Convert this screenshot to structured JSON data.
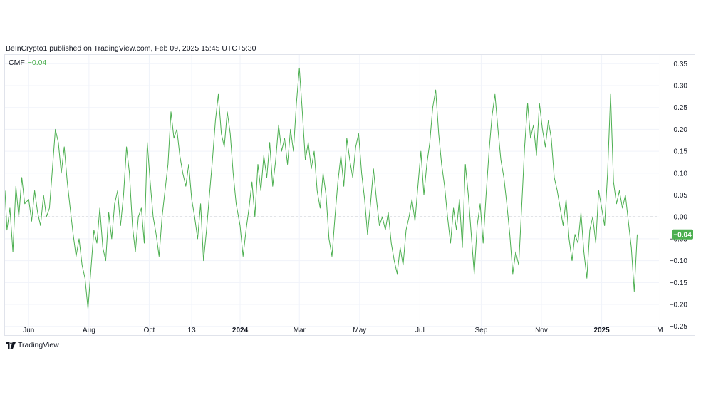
{
  "header": {
    "publish_text": "BeInCrypto1 published on TradingView.com, Feb 09, 2025 15:45 UTC+5:30"
  },
  "legend": {
    "name": "CMF",
    "value": "−0.04"
  },
  "footer": {
    "brand": "TradingView",
    "logo_icon": "tradingview-logo-icon"
  },
  "colors": {
    "series": "#4caf50",
    "badge": "#4caf50",
    "zero_line": "#9598a1",
    "grid": "#f0f3fa",
    "text": "#131722"
  },
  "chart_data": {
    "type": "line",
    "title": "",
    "xlabel": "",
    "ylabel": "",
    "grid": true,
    "legend_placement": "top-left",
    "ylim": [
      -0.27,
      0.37
    ],
    "xlim": [
      "2023-05-08",
      "2025-02-28"
    ],
    "yticks": [
      0.35,
      0.3,
      0.25,
      0.2,
      0.15,
      0.1,
      0.05,
      0.0,
      -0.05,
      -0.1,
      -0.15,
      -0.2,
      -0.25
    ],
    "ytick_labels": [
      "0.35",
      "0.30",
      "0.25",
      "0.20",
      "0.15",
      "0.10",
      "0.05",
      "0.00",
      "−0.05",
      "−0.10",
      "−0.15",
      "−0.20",
      "−0.25"
    ],
    "xticks": [
      {
        "date": "2023-06-01",
        "label": "Jun",
        "bold": false
      },
      {
        "date": "2023-08-01",
        "label": "Aug",
        "bold": false
      },
      {
        "date": "2023-10-01",
        "label": "Oct",
        "bold": false
      },
      {
        "date": "2023-11-13",
        "label": "13",
        "bold": false
      },
      {
        "date": "2024-01-01",
        "label": "2024",
        "bold": true
      },
      {
        "date": "2024-03-01",
        "label": "Mar",
        "bold": false
      },
      {
        "date": "2024-05-01",
        "label": "May",
        "bold": false
      },
      {
        "date": "2024-07-01",
        "label": "Jul",
        "bold": false
      },
      {
        "date": "2024-09-01",
        "label": "Sep",
        "bold": false
      },
      {
        "date": "2024-11-01",
        "label": "Nov",
        "bold": false
      },
      {
        "date": "2025-01-01",
        "label": "2025",
        "bold": true
      },
      {
        "date": "2025-03-01",
        "label": "M",
        "bold": false
      }
    ],
    "zero_line": 0.0,
    "last_value": -0.04,
    "last_value_label": "−0.04",
    "series": [
      {
        "points": [
          [
            "2023-05-08",
            0.06
          ],
          [
            "2023-05-10",
            -0.03
          ],
          [
            "2023-05-13",
            0.02
          ],
          [
            "2023-05-16",
            -0.08
          ],
          [
            "2023-05-19",
            0.07
          ],
          [
            "2023-05-22",
            0.0
          ],
          [
            "2023-05-25",
            0.09
          ],
          [
            "2023-05-28",
            0.03
          ],
          [
            "2023-06-01",
            0.04
          ],
          [
            "2023-06-04",
            -0.01
          ],
          [
            "2023-06-07",
            0.06
          ],
          [
            "2023-06-10",
            0.01
          ],
          [
            "2023-06-13",
            -0.02
          ],
          [
            "2023-06-16",
            0.05
          ],
          [
            "2023-06-19",
            0.0
          ],
          [
            "2023-06-22",
            0.02
          ],
          [
            "2023-06-25",
            0.11
          ],
          [
            "2023-06-28",
            0.2
          ],
          [
            "2023-07-01",
            0.17
          ],
          [
            "2023-07-04",
            0.1
          ],
          [
            "2023-07-07",
            0.16
          ],
          [
            "2023-07-10",
            0.08
          ],
          [
            "2023-07-13",
            0.02
          ],
          [
            "2023-07-16",
            -0.04
          ],
          [
            "2023-07-19",
            -0.09
          ],
          [
            "2023-07-22",
            -0.05
          ],
          [
            "2023-07-25",
            -0.11
          ],
          [
            "2023-07-28",
            -0.14
          ],
          [
            "2023-07-31",
            -0.21
          ],
          [
            "2023-08-03",
            -0.12
          ],
          [
            "2023-08-06",
            -0.03
          ],
          [
            "2023-08-09",
            -0.06
          ],
          [
            "2023-08-12",
            0.02
          ],
          [
            "2023-08-15",
            -0.07
          ],
          [
            "2023-08-18",
            -0.1
          ],
          [
            "2023-08-21",
            0.01
          ],
          [
            "2023-08-24",
            -0.05
          ],
          [
            "2023-08-27",
            0.03
          ],
          [
            "2023-08-30",
            0.06
          ],
          [
            "2023-09-02",
            -0.02
          ],
          [
            "2023-09-05",
            0.05
          ],
          [
            "2023-09-08",
            0.16
          ],
          [
            "2023-09-11",
            0.1
          ],
          [
            "2023-09-14",
            -0.02
          ],
          [
            "2023-09-17",
            -0.08
          ],
          [
            "2023-09-20",
            0.0
          ],
          [
            "2023-09-23",
            0.02
          ],
          [
            "2023-09-26",
            -0.06
          ],
          [
            "2023-09-29",
            0.17
          ],
          [
            "2023-10-02",
            0.08
          ],
          [
            "2023-10-05",
            0.0
          ],
          [
            "2023-10-08",
            -0.04
          ],
          [
            "2023-10-11",
            -0.09
          ],
          [
            "2023-10-14",
            0.0
          ],
          [
            "2023-10-17",
            0.06
          ],
          [
            "2023-10-20",
            0.12
          ],
          [
            "2023-10-23",
            0.24
          ],
          [
            "2023-10-26",
            0.18
          ],
          [
            "2023-10-29",
            0.2
          ],
          [
            "2023-11-01",
            0.14
          ],
          [
            "2023-11-04",
            0.1
          ],
          [
            "2023-11-07",
            0.07
          ],
          [
            "2023-11-10",
            0.12
          ],
          [
            "2023-11-13",
            0.04
          ],
          [
            "2023-11-16",
            0.0
          ],
          [
            "2023-11-19",
            -0.05
          ],
          [
            "2023-11-22",
            0.03
          ],
          [
            "2023-11-25",
            -0.1
          ],
          [
            "2023-11-28",
            -0.03
          ],
          [
            "2023-12-01",
            0.05
          ],
          [
            "2023-12-04",
            0.13
          ],
          [
            "2023-12-07",
            0.22
          ],
          [
            "2023-12-10",
            0.28
          ],
          [
            "2023-12-13",
            0.19
          ],
          [
            "2023-12-16",
            0.16
          ],
          [
            "2023-12-19",
            0.24
          ],
          [
            "2023-12-22",
            0.19
          ],
          [
            "2023-12-25",
            0.1
          ],
          [
            "2023-12-28",
            0.03
          ],
          [
            "2024-01-01",
            -0.02
          ],
          [
            "2024-01-04",
            -0.09
          ],
          [
            "2024-01-07",
            -0.03
          ],
          [
            "2024-01-10",
            0.02
          ],
          [
            "2024-01-13",
            0.08
          ],
          [
            "2024-01-16",
            0.0
          ],
          [
            "2024-01-19",
            0.12
          ],
          [
            "2024-01-22",
            0.06
          ],
          [
            "2024-01-25",
            0.14
          ],
          [
            "2024-01-28",
            0.09
          ],
          [
            "2024-01-31",
            0.17
          ],
          [
            "2024-02-03",
            0.07
          ],
          [
            "2024-02-06",
            0.13
          ],
          [
            "2024-02-09",
            0.21
          ],
          [
            "2024-02-12",
            0.15
          ],
          [
            "2024-02-15",
            0.18
          ],
          [
            "2024-02-18",
            0.12
          ],
          [
            "2024-02-21",
            0.2
          ],
          [
            "2024-02-24",
            0.15
          ],
          [
            "2024-02-27",
            0.26
          ],
          [
            "2024-03-01",
            0.34
          ],
          [
            "2024-03-04",
            0.24
          ],
          [
            "2024-03-07",
            0.13
          ],
          [
            "2024-03-10",
            0.17
          ],
          [
            "2024-03-13",
            0.11
          ],
          [
            "2024-03-16",
            0.15
          ],
          [
            "2024-03-19",
            0.06
          ],
          [
            "2024-03-22",
            0.02
          ],
          [
            "2024-03-25",
            0.1
          ],
          [
            "2024-03-28",
            0.05
          ],
          [
            "2024-03-31",
            -0.05
          ],
          [
            "2024-04-03",
            -0.09
          ],
          [
            "2024-04-06",
            0.0
          ],
          [
            "2024-04-09",
            0.08
          ],
          [
            "2024-04-12",
            0.14
          ],
          [
            "2024-04-15",
            0.07
          ],
          [
            "2024-04-18",
            0.18
          ],
          [
            "2024-04-21",
            0.13
          ],
          [
            "2024-04-24",
            0.09
          ],
          [
            "2024-04-27",
            0.16
          ],
          [
            "2024-04-30",
            0.19
          ],
          [
            "2024-05-03",
            0.1
          ],
          [
            "2024-05-06",
            0.04
          ],
          [
            "2024-05-09",
            -0.04
          ],
          [
            "2024-05-12",
            0.03
          ],
          [
            "2024-05-15",
            0.11
          ],
          [
            "2024-05-18",
            0.04
          ],
          [
            "2024-05-21",
            -0.02
          ],
          [
            "2024-05-24",
            0.0
          ],
          [
            "2024-05-27",
            -0.03
          ],
          [
            "2024-05-30",
            0.01
          ],
          [
            "2024-06-02",
            -0.06
          ],
          [
            "2024-06-05",
            -0.1
          ],
          [
            "2024-06-08",
            -0.13
          ],
          [
            "2024-06-11",
            -0.07
          ],
          [
            "2024-06-14",
            -0.11
          ],
          [
            "2024-06-17",
            -0.03
          ],
          [
            "2024-06-20",
            0.0
          ],
          [
            "2024-06-23",
            0.04
          ],
          [
            "2024-06-26",
            -0.01
          ],
          [
            "2024-06-29",
            0.07
          ],
          [
            "2024-07-02",
            0.15
          ],
          [
            "2024-07-05",
            0.05
          ],
          [
            "2024-07-08",
            0.12
          ],
          [
            "2024-07-11",
            0.17
          ],
          [
            "2024-07-14",
            0.25
          ],
          [
            "2024-07-17",
            0.29
          ],
          [
            "2024-07-20",
            0.19
          ],
          [
            "2024-07-23",
            0.12
          ],
          [
            "2024-07-26",
            0.07
          ],
          [
            "2024-07-29",
            0.0
          ],
          [
            "2024-08-01",
            -0.06
          ],
          [
            "2024-08-04",
            0.02
          ],
          [
            "2024-08-07",
            -0.03
          ],
          [
            "2024-08-10",
            0.04
          ],
          [
            "2024-08-13",
            -0.07
          ],
          [
            "2024-08-16",
            0.12
          ],
          [
            "2024-08-19",
            0.05
          ],
          [
            "2024-08-22",
            -0.04
          ],
          [
            "2024-08-25",
            -0.13
          ],
          [
            "2024-08-28",
            -0.02
          ],
          [
            "2024-08-31",
            0.03
          ],
          [
            "2024-09-03",
            -0.06
          ],
          [
            "2024-09-06",
            0.05
          ],
          [
            "2024-09-09",
            0.15
          ],
          [
            "2024-09-12",
            0.23
          ],
          [
            "2024-09-15",
            0.28
          ],
          [
            "2024-09-18",
            0.2
          ],
          [
            "2024-09-21",
            0.13
          ],
          [
            "2024-09-24",
            0.09
          ],
          [
            "2024-09-27",
            0.03
          ],
          [
            "2024-09-30",
            -0.04
          ],
          [
            "2024-10-03",
            -0.13
          ],
          [
            "2024-10-06",
            -0.08
          ],
          [
            "2024-10-09",
            -0.11
          ],
          [
            "2024-10-12",
            0.02
          ],
          [
            "2024-10-15",
            0.16
          ],
          [
            "2024-10-18",
            0.26
          ],
          [
            "2024-10-21",
            0.18
          ],
          [
            "2024-10-24",
            0.21
          ],
          [
            "2024-10-27",
            0.14
          ],
          [
            "2024-10-30",
            0.26
          ],
          [
            "2024-11-02",
            0.2
          ],
          [
            "2024-11-05",
            0.16
          ],
          [
            "2024-11-08",
            0.22
          ],
          [
            "2024-11-11",
            0.18
          ],
          [
            "2024-11-14",
            0.09
          ],
          [
            "2024-11-17",
            0.06
          ],
          [
            "2024-11-20",
            0.02
          ],
          [
            "2024-11-23",
            -0.02
          ],
          [
            "2024-11-26",
            0.04
          ],
          [
            "2024-11-29",
            -0.05
          ],
          [
            "2024-12-02",
            -0.1
          ],
          [
            "2024-12-05",
            -0.04
          ],
          [
            "2024-12-08",
            -0.06
          ],
          [
            "2024-12-11",
            0.01
          ],
          [
            "2024-12-14",
            -0.08
          ],
          [
            "2024-12-17",
            -0.14
          ],
          [
            "2024-12-20",
            -0.03
          ],
          [
            "2024-12-23",
            0.0
          ],
          [
            "2024-12-26",
            -0.06
          ],
          [
            "2024-12-29",
            0.06
          ],
          [
            "2025-01-01",
            0.02
          ],
          [
            "2025-01-04",
            -0.02
          ],
          [
            "2025-01-07",
            0.1
          ],
          [
            "2025-01-10",
            0.28
          ],
          [
            "2025-01-13",
            0.08
          ],
          [
            "2025-01-16",
            0.03
          ],
          [
            "2025-01-19",
            0.06
          ],
          [
            "2025-01-22",
            0.02
          ],
          [
            "2025-01-25",
            0.05
          ],
          [
            "2025-01-28",
            -0.01
          ],
          [
            "2025-01-31",
            -0.07
          ],
          [
            "2025-02-03",
            -0.17
          ],
          [
            "2025-02-06",
            -0.04
          ]
        ]
      }
    ]
  }
}
